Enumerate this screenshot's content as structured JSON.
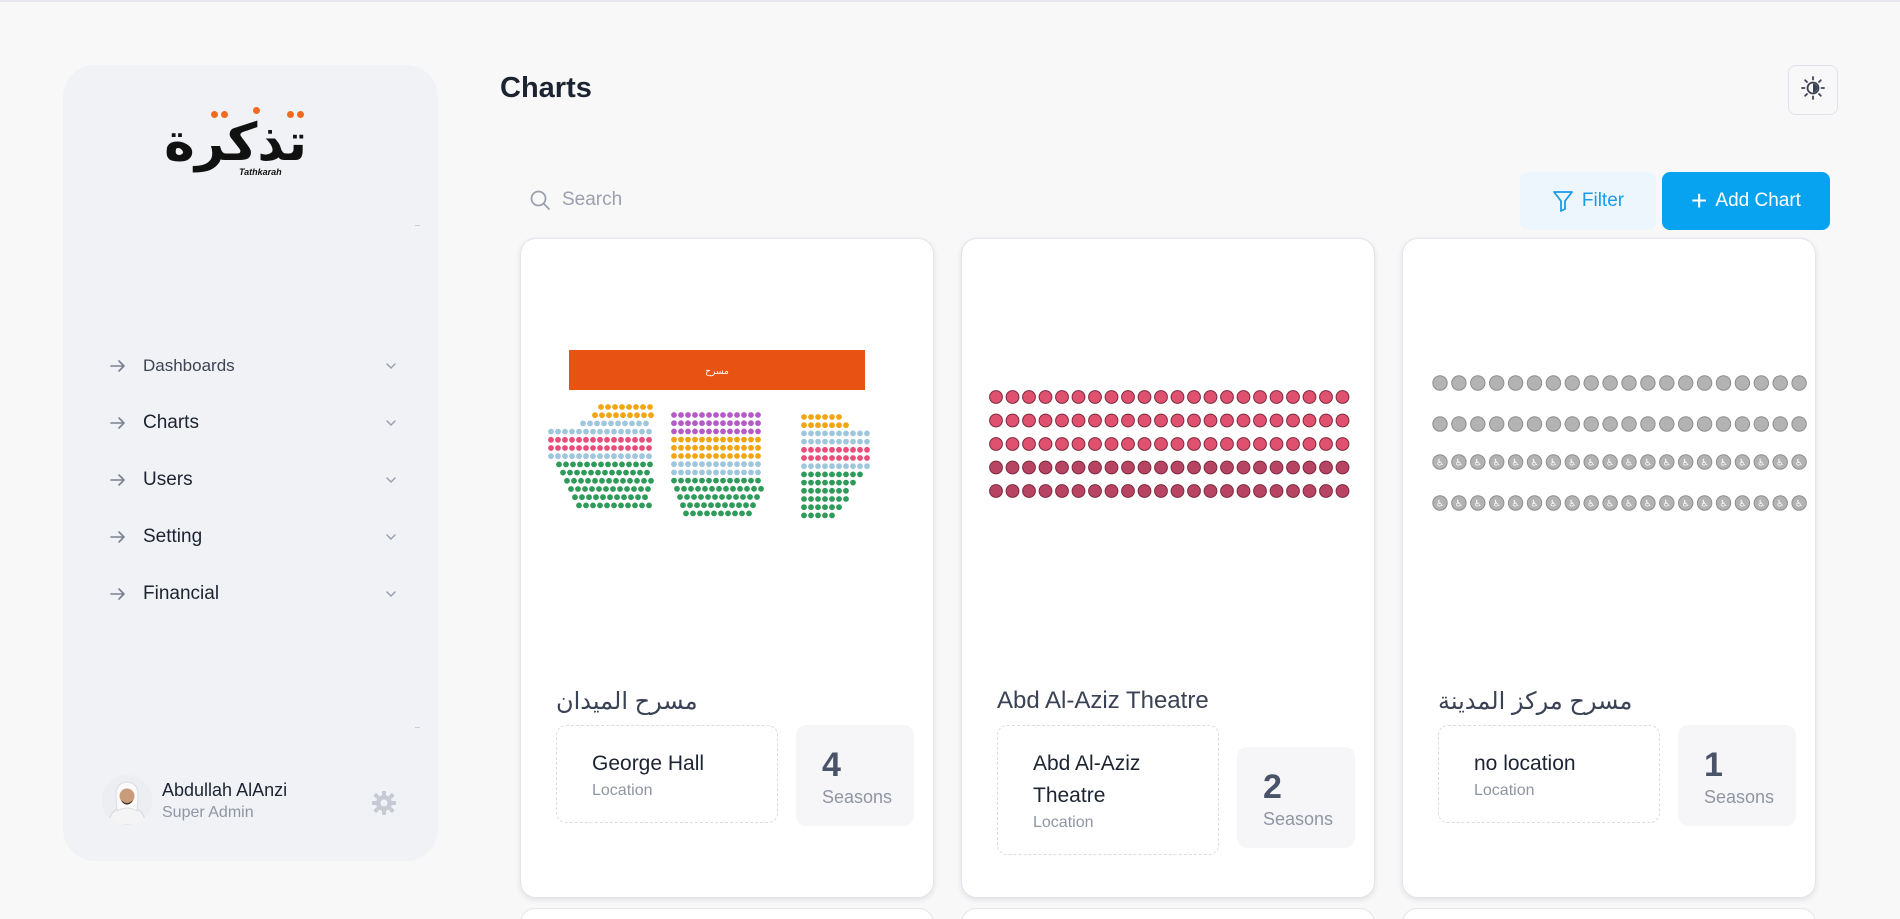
{
  "app": {
    "logo_text": "تذكرة",
    "logo_subtitle": "Tathkarah"
  },
  "sidebar": {
    "items": [
      {
        "label": "Dashboards",
        "icon": "arrow-right-icon"
      },
      {
        "label": "Charts",
        "icon": "arrow-right-icon"
      },
      {
        "label": "Users",
        "icon": "arrow-right-icon"
      },
      {
        "label": "Setting",
        "icon": "arrow-right-icon"
      },
      {
        "label": "Financial",
        "icon": "arrow-right-icon"
      }
    ],
    "user": {
      "name": "Abdullah AlAnzi",
      "role": "Super Admin"
    }
  },
  "header": {
    "title": "Charts"
  },
  "toolbar": {
    "search_placeholder": "Search",
    "filter_label": "Filter",
    "add_label": "Add Chart"
  },
  "charts": [
    {
      "title": "مسرح الميدان",
      "location": "George Hall",
      "location_label": "Location",
      "seasons": "4",
      "seasons_label": "Seasons",
      "stage_label": "مسرح"
    },
    {
      "title": "Abd Al-Aziz Theatre",
      "location": "Abd Al-Aziz Theatre",
      "location_label": "Location",
      "seasons": "2",
      "seasons_label": "Seasons"
    },
    {
      "title": "مسرح مركز المدينة",
      "location": "no location",
      "location_label": "Location",
      "seasons": "1",
      "seasons_label": "Seasons"
    }
  ],
  "colors": {
    "accent": "#08a3f0",
    "logo_dots": "#f06a1f",
    "stage": "#e85313",
    "seat_orange": "#f2a512",
    "seat_blue": "#9ec6dc",
    "seat_pink": "#e94d7b",
    "seat_purple": "#b65ac8",
    "seat_green": "#2e9b5a",
    "seat_red": "#e0506f",
    "seat_red_dark": "#b64462",
    "seat_grey": "#b3b3b3"
  }
}
